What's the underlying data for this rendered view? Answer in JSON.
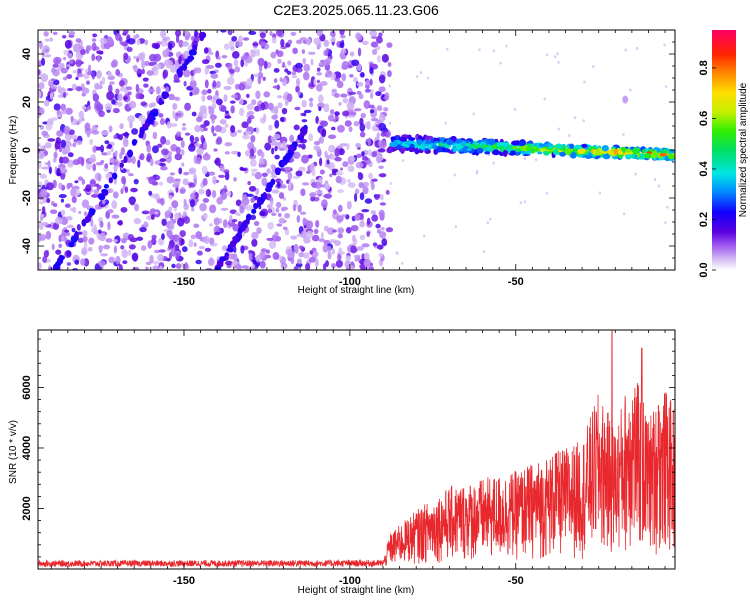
{
  "chart_data": [
    {
      "type": "heatmap",
      "title": "C2E3.2025.065.11.23.G06",
      "xlabel": "Height of straight line (km)",
      "ylabel": "Frequency (Hz)",
      "xlim": [
        -194,
        -2
      ],
      "ylim": [
        -50,
        50
      ],
      "xticks": [
        -150,
        -100,
        -50
      ],
      "yticks": [
        -40,
        -20,
        0,
        20,
        40
      ],
      "colorbar": {
        "label": "Normalized spectral amplitude",
        "range": [
          0,
          0.95
        ],
        "ticks": [
          0.0,
          0.2,
          0.4,
          0.6,
          0.8
        ]
      },
      "features": {
        "noise_region_x": [
          -194,
          -88
        ],
        "diagonal_traces": [
          {
            "x": [
              -189,
              -143
            ],
            "y": [
              -50,
              50
            ]
          },
          {
            "x": [
              -140,
              -113
            ],
            "y": [
              -50,
              10
            ]
          }
        ],
        "main_signal": {
          "x": [
            -88,
            -2
          ],
          "y_center": [
            3,
            -2
          ],
          "amplitude_start": 0.35,
          "amplitude_end": 0.85
        },
        "isolated_blob": {
          "x": -17,
          "y": 21
        }
      }
    },
    {
      "type": "line",
      "xlabel": "Height of straight line (km)",
      "ylabel": "SNR (10 * v/v)",
      "xlim": [
        -194,
        -2
      ],
      "ylim": [
        0,
        7900
      ],
      "xticks": [
        -150,
        -100,
        -50
      ],
      "yticks": [
        2000,
        4000,
        6000
      ],
      "series": [
        {
          "color": "#e8282d",
          "envelope": {
            "x": [
              -194,
              -90,
              -88,
              -80,
              -70,
              -60,
              -50,
              -40,
              -30,
              -25,
              -20,
              -15,
              -10,
              -5,
              -2
            ],
            "y": [
              200,
              220,
              900,
              1500,
              2100,
              2300,
              2500,
              2900,
              3300,
              4500,
              3600,
              5200,
              3900,
              4600,
              4100
            ]
          },
          "spikes": [
            {
              "x": -21,
              "y": 7900
            },
            {
              "x": -12,
              "y": 7300
            },
            {
              "x": -38,
              "y": 3800
            },
            {
              "x": -7,
              "y": 5400
            }
          ]
        }
      ]
    }
  ]
}
